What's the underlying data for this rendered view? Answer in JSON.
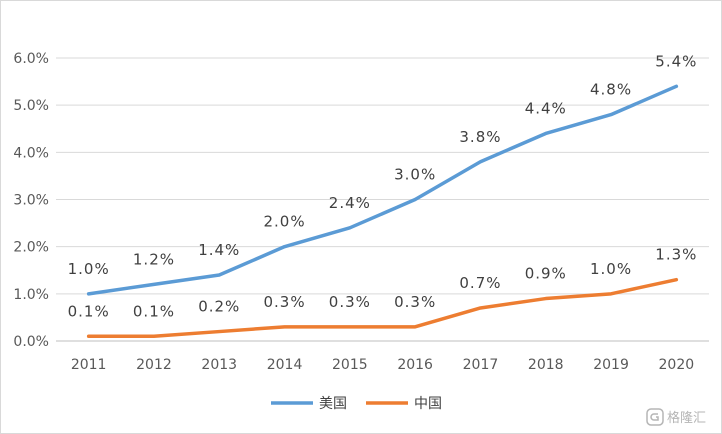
{
  "chart_data": {
    "type": "line",
    "categories": [
      "2011",
      "2012",
      "2013",
      "2014",
      "2015",
      "2016",
      "2017",
      "2018",
      "2019",
      "2020"
    ],
    "series": [
      {
        "name": "美国",
        "color": "#5b9bd5",
        "values": [
          1.0,
          1.2,
          1.4,
          2.0,
          2.4,
          3.0,
          3.8,
          4.4,
          4.8,
          5.4
        ],
        "labels": [
          "1.0%",
          "1.2%",
          "1.4%",
          "2.0%",
          "2.4%",
          "3.0%",
          "3.8%",
          "4.4%",
          "4.8%",
          "5.4%"
        ]
      },
      {
        "name": "中国",
        "color": "#ed7d31",
        "values": [
          0.1,
          0.1,
          0.2,
          0.3,
          0.3,
          0.3,
          0.7,
          0.9,
          1.0,
          1.3
        ],
        "labels": [
          "0.1%",
          "0.1%",
          "0.2%",
          "0.3%",
          "0.3%",
          "0.3%",
          "0.7%",
          "0.9%",
          "1.0%",
          "1.3%"
        ]
      }
    ],
    "yticks": [
      "0.0%",
      "1.0%",
      "2.0%",
      "3.0%",
      "4.0%",
      "5.0%",
      "6.0%"
    ],
    "ylim": [
      0,
      6
    ],
    "grid": true,
    "legend": "bottom"
  },
  "watermark": "格隆汇"
}
